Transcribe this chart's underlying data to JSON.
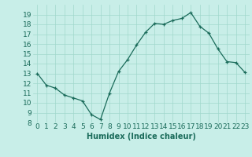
{
  "x": [
    0,
    1,
    2,
    3,
    4,
    5,
    6,
    7,
    8,
    9,
    10,
    11,
    12,
    13,
    14,
    15,
    16,
    17,
    18,
    19,
    20,
    21,
    22,
    23
  ],
  "y": [
    13.0,
    11.8,
    11.5,
    10.8,
    10.5,
    10.2,
    8.8,
    8.3,
    11.0,
    13.2,
    14.4,
    15.9,
    17.2,
    18.1,
    18.0,
    18.4,
    18.6,
    19.2,
    17.8,
    17.1,
    15.5,
    14.2,
    14.1,
    13.1
  ],
  "xlabel": "Humidex (Indice chaleur)",
  "bg_color": "#c8eee8",
  "line_color": "#1a6b5a",
  "grid_color": "#a0d8cc",
  "ylim": [
    8,
    20
  ],
  "xlim": [
    -0.5,
    23.5
  ],
  "yticks": [
    8,
    9,
    10,
    11,
    12,
    13,
    14,
    15,
    16,
    17,
    18,
    19
  ],
  "xticks": [
    0,
    1,
    2,
    3,
    4,
    5,
    6,
    7,
    8,
    9,
    10,
    11,
    12,
    13,
    14,
    15,
    16,
    17,
    18,
    19,
    20,
    21,
    22,
    23
  ],
  "xlabel_fontsize": 7,
  "tick_fontsize": 6.5
}
